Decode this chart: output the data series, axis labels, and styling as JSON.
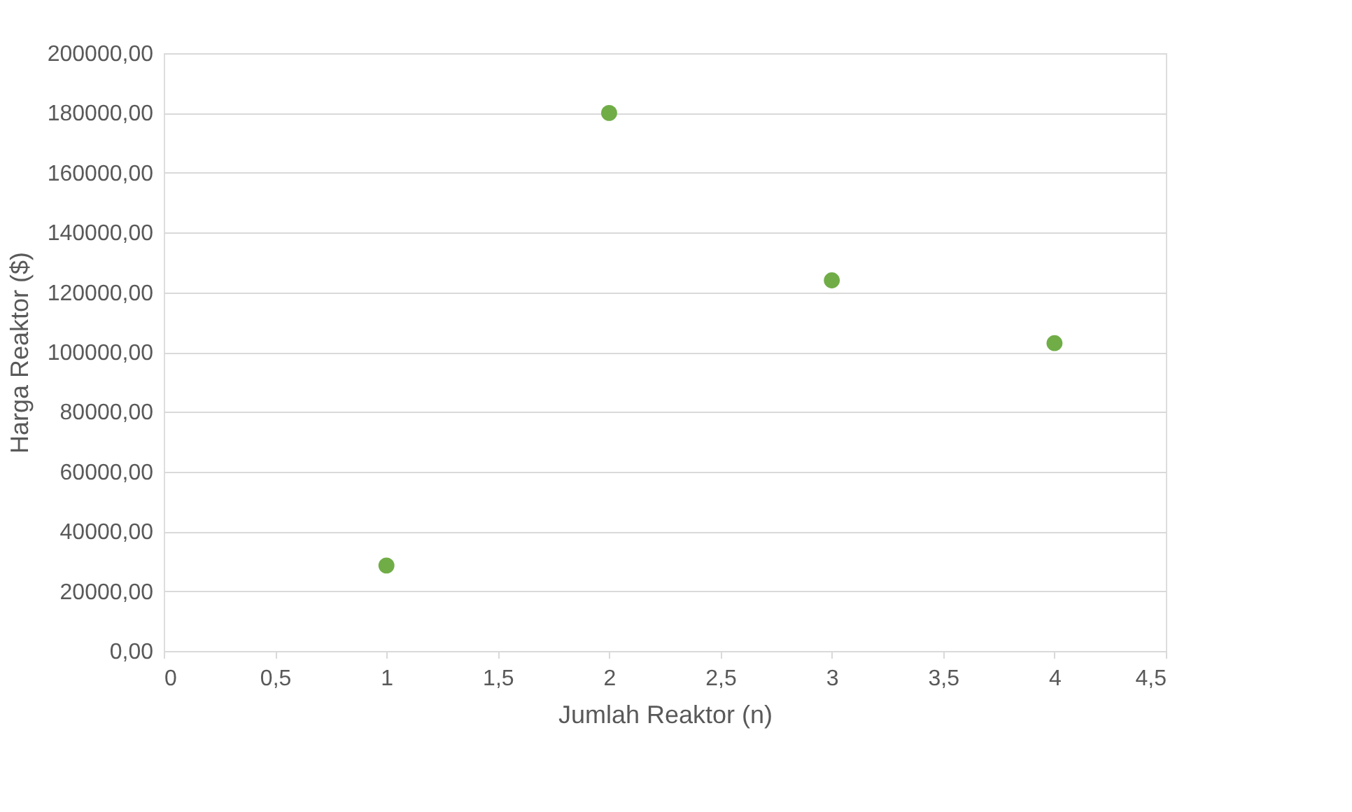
{
  "chart_data": {
    "type": "scatter",
    "xlabel": "Jumlah Reaktor (n)",
    "ylabel": "Harga Reaktor ($)",
    "x": [
      1,
      2,
      3,
      4
    ],
    "series": [
      {
        "color": "#70ad47",
        "values": [
          28600,
          180000,
          124000,
          103000
        ]
      }
    ],
    "xlim": [
      0,
      4.5
    ],
    "xticks": [
      0,
      {
        "value": 0.5,
        "label": "0,5"
      },
      1,
      {
        "value": 1.5,
        "label": "1,5"
      },
      2,
      {
        "value": 2.5,
        "label": "2,5"
      },
      3,
      {
        "value": 3.5,
        "label": "3,5"
      },
      4,
      {
        "value": 4.5,
        "label": "4,5"
      }
    ],
    "ylim": [
      0,
      200000
    ],
    "yticks": [
      {
        "value": 0,
        "label": "0,00"
      },
      {
        "value": 20000,
        "label": "20000,00"
      },
      {
        "value": 40000,
        "label": "40000,00"
      },
      {
        "value": 60000,
        "label": "60000,00"
      },
      {
        "value": 80000,
        "label": "80000,00"
      },
      {
        "value": 100000,
        "label": "100000,00"
      },
      {
        "value": 120000,
        "label": "120000,00"
      },
      {
        "value": 140000,
        "label": "140000,00"
      },
      {
        "value": 160000,
        "label": "160000,00"
      },
      {
        "value": 180000,
        "label": "180000,00"
      },
      {
        "value": 200000,
        "label": "200000,00"
      }
    ],
    "grid": "y",
    "marker": "circle"
  }
}
